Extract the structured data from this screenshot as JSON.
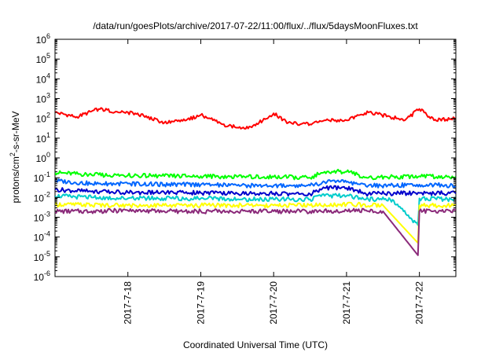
{
  "chart_data": {
    "type": "line",
    "title": "/data/run/goesPlots/archive/2017-07-22/11:00/flux/../flux/5daysMoonFluxes.txt",
    "xlabel": "Coordinated Universal Time (UTC)",
    "ylabel_parts": [
      "protons/cm",
      "2",
      "-s-sr-MeV"
    ],
    "yscale": "log",
    "ylim": [
      1e-06,
      1000000.0
    ],
    "xlim": [
      "2017-07-17 00:00",
      "2017-07-22 12:00"
    ],
    "x_ticks": [
      "2017-7-18",
      "2017-7-19",
      "2017-7-20",
      "2017-7-21",
      "2017-7-22"
    ],
    "y_ticks": [
      {
        "base": "10",
        "exp": "-6"
      },
      {
        "base": "10",
        "exp": "-5"
      },
      {
        "base": "10",
        "exp": "-4"
      },
      {
        "base": "10",
        "exp": "-3"
      },
      {
        "base": "10",
        "exp": "-2"
      },
      {
        "base": "10",
        "exp": "-1"
      },
      {
        "base": "10",
        "exp": "0"
      },
      {
        "base": "10",
        "exp": "1"
      },
      {
        "base": "10",
        "exp": "2"
      },
      {
        "base": "10",
        "exp": "3"
      },
      {
        "base": "10",
        "exp": "4"
      },
      {
        "base": "10",
        "exp": "5"
      },
      {
        "base": "10",
        "exp": "6"
      }
    ],
    "grid": false,
    "legend": false,
    "series": [
      {
        "color": "#ff0000",
        "x": [
          0,
          0.3,
          0.6,
          0.9,
          1.1,
          1.5,
          1.8,
          2.0,
          2.3,
          2.6,
          2.8,
          3.0,
          3.2,
          3.5,
          3.7,
          4.0,
          4.3,
          4.6,
          4.8,
          5.0,
          5.2,
          5.5
        ],
        "y": [
          200,
          120,
          300,
          200,
          180,
          60,
          80,
          150,
          50,
          30,
          60,
          180,
          60,
          50,
          80,
          80,
          200,
          120,
          80,
          300,
          80,
          100
        ]
      },
      {
        "color": "#00ff00",
        "x": [
          0,
          0.5,
          1,
          1.5,
          2,
          2.5,
          3,
          3.5,
          3.7,
          4.0,
          4.3,
          4.6,
          5.0,
          5.5
        ],
        "y": [
          0.18,
          0.14,
          0.13,
          0.12,
          0.12,
          0.11,
          0.11,
          0.1,
          0.2,
          0.2,
          0.1,
          0.11,
          0.12,
          0.11
        ]
      },
      {
        "color": "#0066ff",
        "x": [
          0,
          0.5,
          1,
          1.5,
          2,
          2.5,
          3,
          3.5,
          3.7,
          4.0,
          4.3,
          4.6,
          5.0,
          5.5
        ],
        "y": [
          0.07,
          0.05,
          0.05,
          0.045,
          0.045,
          0.04,
          0.04,
          0.04,
          0.06,
          0.06,
          0.04,
          0.04,
          0.045,
          0.04
        ]
      },
      {
        "color": "#0000cc",
        "x": [
          0,
          0.5,
          1,
          1.5,
          2,
          2.5,
          3,
          3.5,
          3.7,
          4.0,
          4.3,
          4.6,
          5.0,
          5.5
        ],
        "y": [
          0.025,
          0.02,
          0.018,
          0.018,
          0.017,
          0.016,
          0.016,
          0.015,
          0.03,
          0.03,
          0.015,
          0.016,
          0.017,
          0.016
        ]
      },
      {
        "color": "#00cccc",
        "x": [
          0,
          0.5,
          1,
          1.5,
          2,
          2.5,
          3,
          3.5,
          3.7,
          4.0,
          4.3,
          4.6,
          4.98,
          5.0,
          5.5
        ],
        "y": [
          0.012,
          0.01,
          0.009,
          0.009,
          0.009,
          0.008,
          0.008,
          0.008,
          0.012,
          0.012,
          0.008,
          0.008,
          0.0004,
          0.009,
          0.008
        ]
      },
      {
        "color": "#ffff00",
        "x": [
          0,
          0.5,
          1,
          1.5,
          2,
          2.5,
          3,
          3.5,
          4.0,
          4.5,
          4.98,
          5.0,
          5.5
        ],
        "y": [
          0.0045,
          0.0042,
          0.004,
          0.004,
          0.004,
          0.004,
          0.004,
          0.004,
          0.0045,
          0.004,
          5e-05,
          0.004,
          0.004
        ]
      },
      {
        "color": "#8b2a7a",
        "x": [
          0,
          0.5,
          1,
          1.5,
          2,
          2.5,
          3,
          3.5,
          4.0,
          4.5,
          4.98,
          5.0,
          5.5
        ],
        "y": [
          0.002,
          0.002,
          0.0022,
          0.002,
          0.002,
          0.002,
          0.002,
          0.002,
          0.0022,
          0.002,
          1.2e-05,
          0.002,
          0.0022
        ]
      }
    ]
  }
}
